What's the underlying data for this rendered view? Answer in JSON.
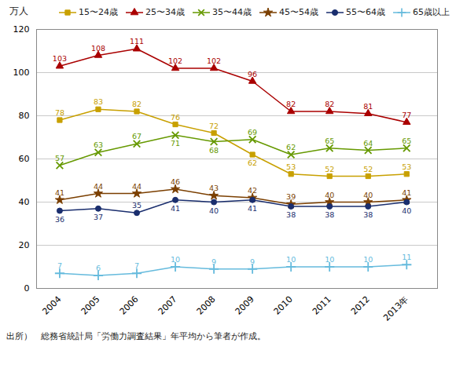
{
  "chart_data": {
    "type": "line",
    "x": [
      2004,
      2005,
      2006,
      2007,
      2008,
      2009,
      2010,
      2011,
      2012,
      2013
    ],
    "xlim": [
      2003.4,
      2013.8
    ],
    "xticks": [
      2004,
      2005,
      2006,
      2007,
      2008,
      2009,
      2010,
      2011,
      2012,
      {
        "value": 2013,
        "label": "2013年"
      }
    ],
    "ylim": [
      0,
      120
    ],
    "yticks": [
      0,
      20,
      40,
      60,
      80,
      100,
      120
    ],
    "ylabel": "万人",
    "caption": "出所）　総務省統計局「労働力調査結果」年平均から筆者が作成。",
    "grid": true,
    "legend": "upper right",
    "data_labels": true,
    "series": [
      {
        "name": "15〜24歳",
        "color": "#C8A000",
        "marker": "square",
        "values": [
          78,
          83,
          82,
          76,
          72,
          62,
          53,
          52,
          52,
          53
        ]
      },
      {
        "name": "25〜34歳",
        "color": "#AA0000",
        "marker": "triangle",
        "values": [
          103,
          108,
          111,
          102,
          102,
          96,
          82,
          82,
          81,
          77
        ]
      },
      {
        "name": "35〜44歳",
        "color": "#669900",
        "marker": "x",
        "values": [
          57,
          63,
          67,
          71,
          68,
          69,
          62,
          65,
          64,
          65
        ]
      },
      {
        "name": "45〜54歳",
        "color": "#7B3F00",
        "marker": "star",
        "values": [
          41,
          44,
          44,
          46,
          43,
          42,
          39,
          40,
          40,
          41
        ]
      },
      {
        "name": "55〜64歳",
        "color": "#1A2E6E",
        "marker": "circle",
        "values": [
          36,
          37,
          35,
          41,
          40,
          41,
          38,
          38,
          38,
          40
        ]
      },
      {
        "name": "65歳以上",
        "color": "#66BBDD",
        "marker": "plus",
        "values": [
          7,
          6,
          7,
          10,
          9,
          9,
          10,
          10,
          10,
          11
        ]
      }
    ]
  }
}
